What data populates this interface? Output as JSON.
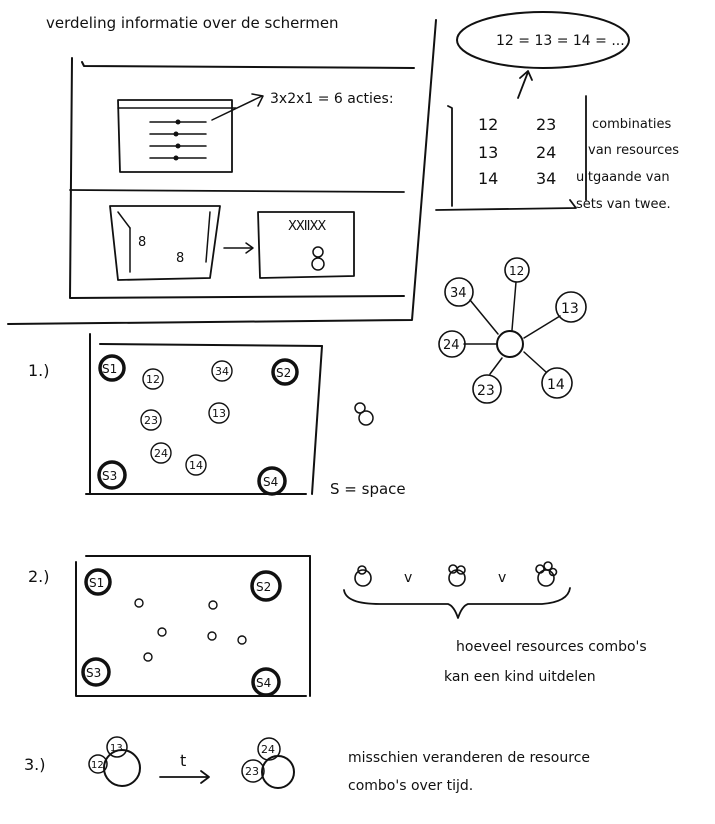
{
  "header": {
    "title": "verdeling informatie over de schermen"
  },
  "screen_sketch": {
    "actions_note": "3x2x1 = 6 acties:"
  },
  "combinations": {
    "equation": "12 = 13 = 14 = ...",
    "pairs": [
      "12",
      "23",
      "13",
      "24",
      "14",
      "34"
    ],
    "note_lines": [
      "combinaties",
      "van resources",
      "uitgaande van",
      "sets van twee."
    ]
  },
  "star_diagram": {
    "nodes": [
      "34",
      "12",
      "13",
      "24",
      "23",
      "14"
    ]
  },
  "section1": {
    "number": "1.)",
    "space_labels": [
      "S1",
      "S2",
      "S3",
      "S4"
    ],
    "resource_labels": [
      "12",
      "34",
      "23",
      "13",
      "24",
      "14"
    ],
    "legend": "S = space"
  },
  "section2": {
    "number": "2.)",
    "space_labels": [
      "S1",
      "S2",
      "S3",
      "S4"
    ],
    "separator": "v",
    "note_lines": [
      "hoeveel resources combo's",
      "kan een kind uitdelen"
    ]
  },
  "section3": {
    "number": "3.)",
    "before_labels": [
      "13",
      "12"
    ],
    "arrow_label": "t",
    "after_labels": [
      "24",
      "23"
    ],
    "note_lines": [
      "misschien veranderen de resource",
      "combo's over tijd."
    ]
  },
  "colors": {
    "ink": "#111111",
    "paper": "#ffffff"
  }
}
